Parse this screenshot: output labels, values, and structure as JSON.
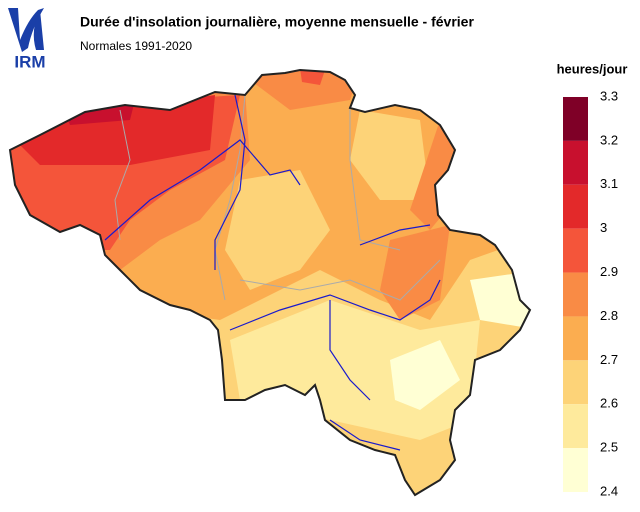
{
  "header": {
    "logo": "IRM",
    "title": "Durée d'insolation journalière, moyenne mensuelle - février",
    "subtitle": "Normales 1991-2020"
  },
  "legend": {
    "title": "heures/jour",
    "ticks": [
      3.3,
      3.2,
      3.1,
      3,
      2.9,
      2.8,
      2.7,
      2.6,
      2.5,
      2.4
    ],
    "colors": [
      "#7f0027",
      "#c8102e",
      "#e3292a",
      "#f4553a",
      "#f98b45",
      "#fbad50",
      "#fdd378",
      "#feea9c",
      "#ffffd4"
    ]
  }
}
